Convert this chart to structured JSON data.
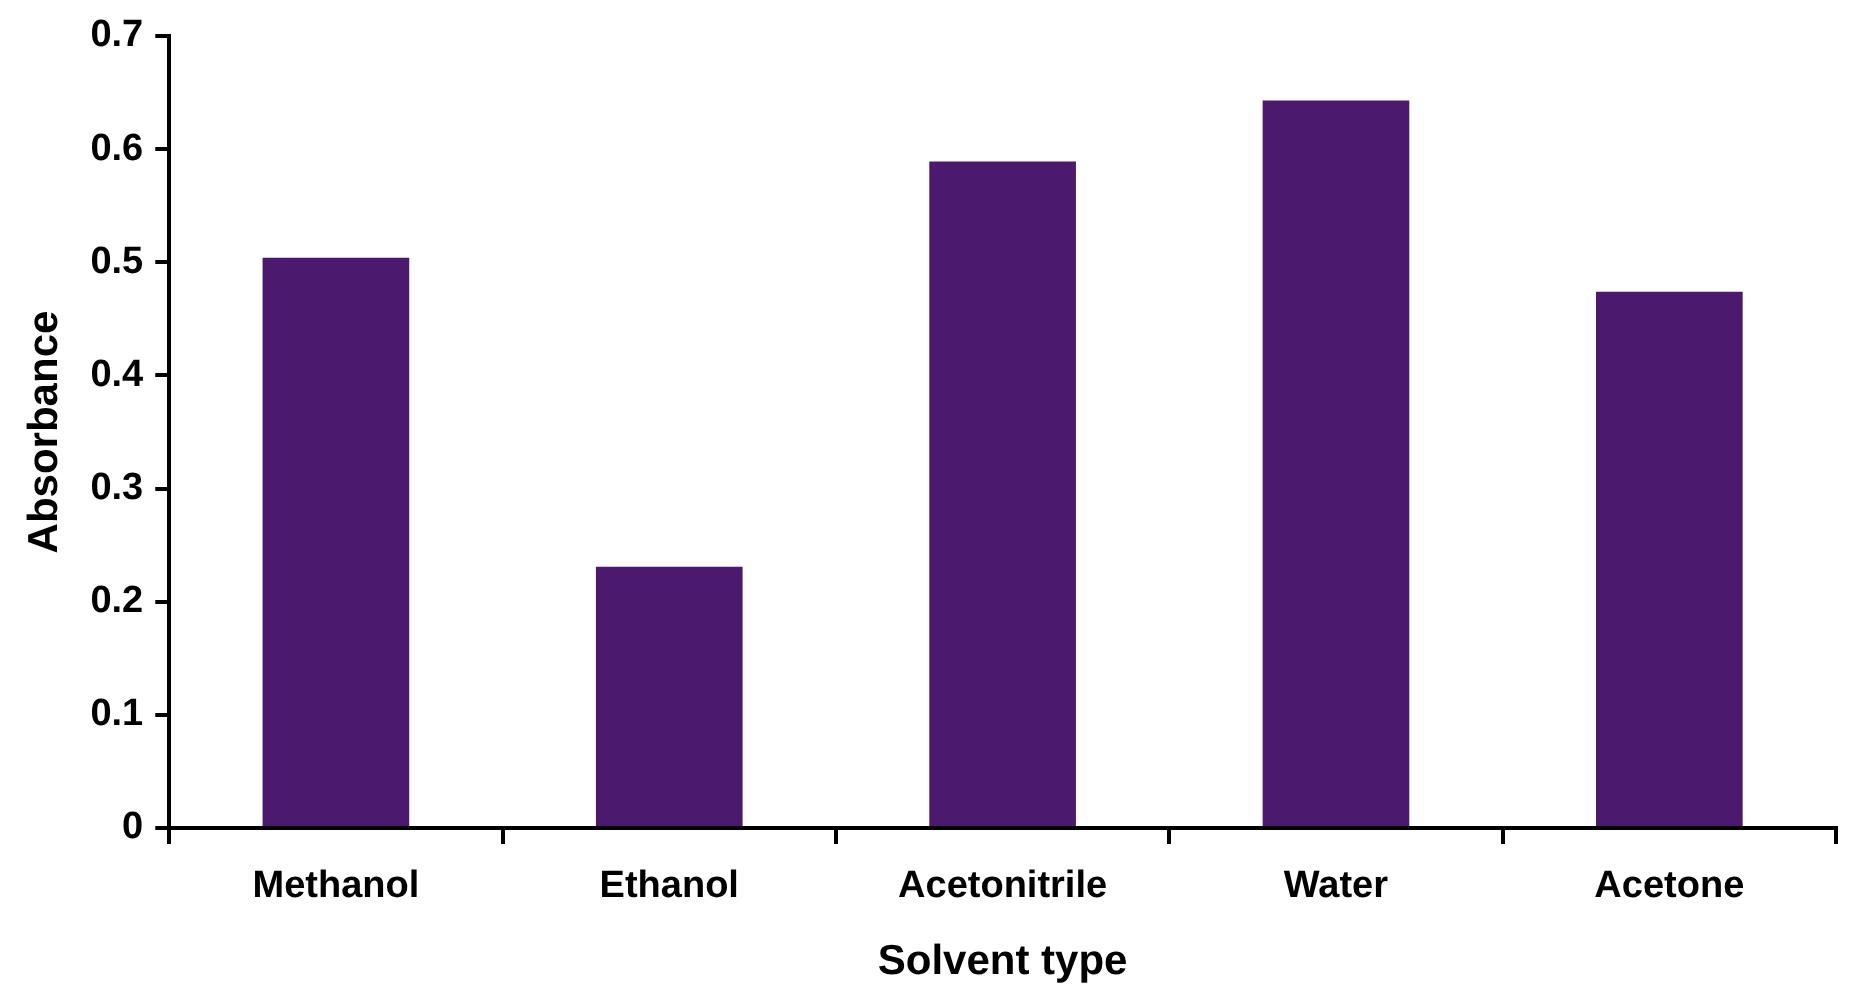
{
  "chart_data": {
    "type": "bar",
    "xlabel": "Solvent type",
    "ylabel": "Absorbance",
    "categories": [
      "Methanol",
      "Ethanol",
      "Acetonitrile",
      "Water",
      "Acetone"
    ],
    "values": [
      0.504,
      0.231,
      0.589,
      0.643,
      0.474
    ],
    "color": "#4b1a6e",
    "ylim": [
      0,
      0.7
    ],
    "yticks": [
      0,
      0.1,
      0.2,
      0.3,
      0.4,
      0.5,
      0.6,
      0.7
    ],
    "grid": false,
    "legend": false
  }
}
